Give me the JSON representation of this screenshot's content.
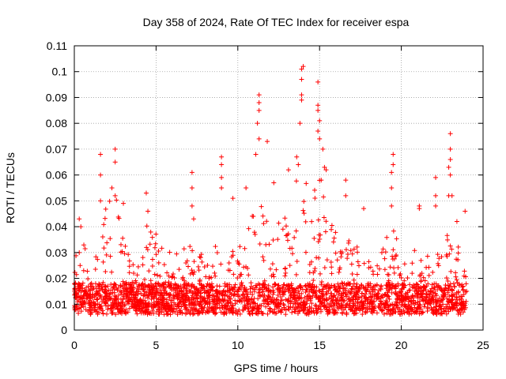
{
  "chart_data": {
    "type": "scatter",
    "title": "Day 358 of 2024, Rate Of TEC Index for receiver espa",
    "xlabel": "GPS time / hours",
    "ylabel": "ROTI / TECUs",
    "xlim": [
      0,
      25
    ],
    "ylim": [
      0,
      0.11
    ],
    "xticks": [
      0,
      5,
      10,
      15,
      20,
      25
    ],
    "xtick_labels": [
      "0",
      "5",
      "10",
      "15",
      "20",
      "25"
    ],
    "yticks": [
      0,
      0.01,
      0.02,
      0.03,
      0.04,
      0.05,
      0.06,
      0.07,
      0.08,
      0.09,
      0.1,
      0.11
    ],
    "ytick_labels": [
      "0",
      "0.01",
      "0.02",
      "0.03",
      "0.04",
      "0.05",
      "0.06",
      "0.07",
      "0.08",
      "0.09",
      "0.1",
      "0.11"
    ],
    "grid": true,
    "marker": "+",
    "color": "#ff0000",
    "series": [
      {
        "name": "ROTI",
        "envelope_hours": [
          0,
          0.5,
          1,
          1.5,
          2,
          2.5,
          3,
          3.5,
          4,
          4.5,
          5,
          5.5,
          6,
          6.5,
          7,
          7.5,
          8,
          8.5,
          9,
          9.5,
          10,
          10.5,
          11,
          11.5,
          12,
          12.5,
          13,
          13.5,
          14,
          14.5,
          15,
          15.5,
          16,
          16.5,
          17,
          17.5,
          18,
          18.5,
          19,
          19.5,
          20,
          20.5,
          21,
          21.5,
          22,
          22.5,
          23,
          23.5,
          24
        ],
        "envelope_max": [
          0.03,
          0.036,
          0.028,
          0.032,
          0.05,
          0.062,
          0.035,
          0.03,
          0.028,
          0.042,
          0.04,
          0.036,
          0.03,
          0.03,
          0.034,
          0.03,
          0.03,
          0.032,
          0.035,
          0.03,
          0.032,
          0.036,
          0.048,
          0.06,
          0.04,
          0.042,
          0.05,
          0.058,
          0.06,
          0.054,
          0.06,
          0.044,
          0.04,
          0.036,
          0.038,
          0.03,
          0.028,
          0.032,
          0.04,
          0.042,
          0.03,
          0.03,
          0.032,
          0.03,
          0.03,
          0.032,
          0.04,
          0.032,
          0.025
        ],
        "spikes": [
          {
            "x": 0.3,
            "y": 0.043
          },
          {
            "x": 0.4,
            "y": 0.04
          },
          {
            "x": 1.6,
            "y": 0.068
          },
          {
            "x": 1.6,
            "y": 0.06
          },
          {
            "x": 1.6,
            "y": 0.05
          },
          {
            "x": 2.3,
            "y": 0.055
          },
          {
            "x": 2.5,
            "y": 0.07
          },
          {
            "x": 2.5,
            "y": 0.065
          },
          {
            "x": 2.5,
            "y": 0.052
          },
          {
            "x": 3.0,
            "y": 0.049
          },
          {
            "x": 4.4,
            "y": 0.053
          },
          {
            "x": 4.5,
            "y": 0.046
          },
          {
            "x": 7.2,
            "y": 0.061
          },
          {
            "x": 7.2,
            "y": 0.055
          },
          {
            "x": 7.2,
            "y": 0.048
          },
          {
            "x": 7.3,
            "y": 0.043
          },
          {
            "x": 9.0,
            "y": 0.067
          },
          {
            "x": 9.0,
            "y": 0.064
          },
          {
            "x": 9.0,
            "y": 0.059
          },
          {
            "x": 9.0,
            "y": 0.055
          },
          {
            "x": 9.7,
            "y": 0.051
          },
          {
            "x": 10.5,
            "y": 0.055
          },
          {
            "x": 11.1,
            "y": 0.068
          },
          {
            "x": 11.3,
            "y": 0.091
          },
          {
            "x": 11.3,
            "y": 0.088
          },
          {
            "x": 11.3,
            "y": 0.085
          },
          {
            "x": 11.2,
            "y": 0.08
          },
          {
            "x": 11.3,
            "y": 0.074
          },
          {
            "x": 11.8,
            "y": 0.073
          },
          {
            "x": 12.2,
            "y": 0.057
          },
          {
            "x": 13.1,
            "y": 0.062
          },
          {
            "x": 13.6,
            "y": 0.067
          },
          {
            "x": 13.7,
            "y": 0.064
          },
          {
            "x": 13.9,
            "y": 0.101
          },
          {
            "x": 14.0,
            "y": 0.102
          },
          {
            "x": 13.9,
            "y": 0.097
          },
          {
            "x": 13.9,
            "y": 0.091
          },
          {
            "x": 13.9,
            "y": 0.089
          },
          {
            "x": 13.8,
            "y": 0.08
          },
          {
            "x": 14.9,
            "y": 0.096
          },
          {
            "x": 14.9,
            "y": 0.087
          },
          {
            "x": 14.9,
            "y": 0.085
          },
          {
            "x": 15.0,
            "y": 0.081
          },
          {
            "x": 14.9,
            "y": 0.077
          },
          {
            "x": 15.0,
            "y": 0.074
          },
          {
            "x": 15.2,
            "y": 0.07
          },
          {
            "x": 15.3,
            "y": 0.063
          },
          {
            "x": 15.4,
            "y": 0.062
          },
          {
            "x": 15.1,
            "y": 0.058
          },
          {
            "x": 16.6,
            "y": 0.058
          },
          {
            "x": 16.6,
            "y": 0.052
          },
          {
            "x": 17.7,
            "y": 0.047
          },
          {
            "x": 19.4,
            "y": 0.061
          },
          {
            "x": 19.5,
            "y": 0.064
          },
          {
            "x": 19.5,
            "y": 0.068
          },
          {
            "x": 19.4,
            "y": 0.055
          },
          {
            "x": 19.4,
            "y": 0.048
          },
          {
            "x": 21.1,
            "y": 0.048
          },
          {
            "x": 21.1,
            "y": 0.047
          },
          {
            "x": 22.1,
            "y": 0.059
          },
          {
            "x": 22.1,
            "y": 0.052
          },
          {
            "x": 22.1,
            "y": 0.048
          },
          {
            "x": 23.0,
            "y": 0.076
          },
          {
            "x": 23.0,
            "y": 0.07
          },
          {
            "x": 23.0,
            "y": 0.066
          },
          {
            "x": 22.9,
            "y": 0.063
          },
          {
            "x": 23.0,
            "y": 0.06
          },
          {
            "x": 22.9,
            "y": 0.052
          },
          {
            "x": 23.1,
            "y": 0.052
          },
          {
            "x": 23.4,
            "y": 0.042
          },
          {
            "x": 23.9,
            "y": 0.046
          }
        ]
      }
    ]
  }
}
